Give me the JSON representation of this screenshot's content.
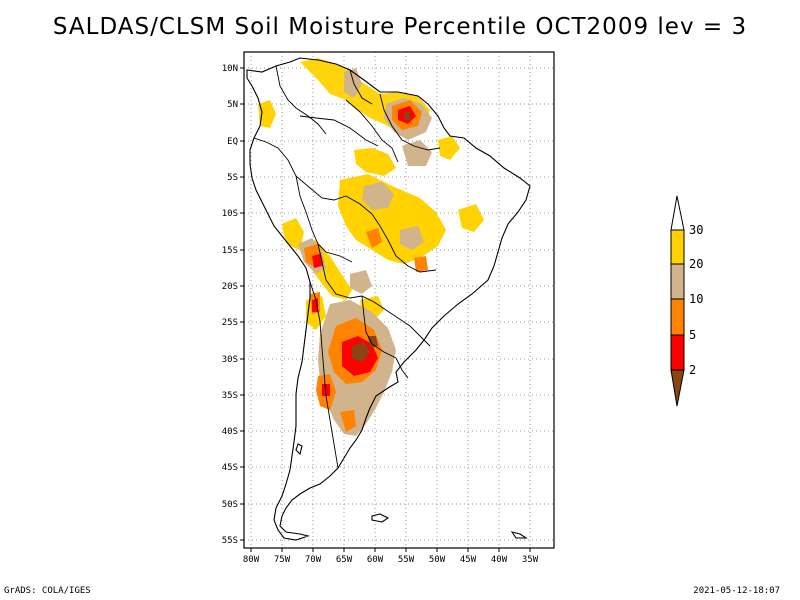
{
  "title": "SALDAS/CLSM Soil Moisture Percentile OCT2009 lev = 3",
  "lat_labels": [
    "10N",
    "5N",
    "EQ",
    "5S",
    "10S",
    "15S",
    "20S",
    "25S",
    "30S",
    "35S",
    "40S",
    "45S",
    "50S",
    "55S"
  ],
  "lon_labels": [
    "80W",
    "75W",
    "70W",
    "65W",
    "60W",
    "55W",
    "50W",
    "45W",
    "40W",
    "35W"
  ],
  "colorbar": {
    "levels": [
      "30",
      "20",
      "10",
      "5",
      "2"
    ],
    "colors": {
      "above_30": "#ffffff",
      "20_30": "#ffd200",
      "10_20": "#d2b48c",
      "5_10": "#ff8200",
      "2_5": "#ff0000",
      "below_2": "#8b4513"
    }
  },
  "footer": {
    "left": "GrADS: COLA/IGES",
    "right": "2021-05-12-18:07"
  }
}
